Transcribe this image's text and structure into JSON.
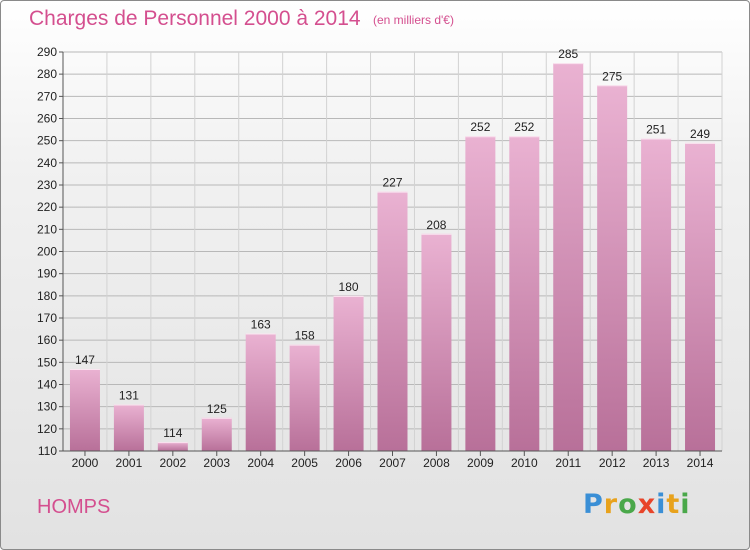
{
  "header": {
    "title": "Charges de Personnel 2000 à 2014",
    "subtitle": "(en milliers d'€)"
  },
  "footer": {
    "commune": "HOMPS",
    "logo_text": "Proxiti",
    "logo_colors": [
      "#3a8fd6",
      "#e8a21c",
      "#4aa84a",
      "#e8452a",
      "#3a8fd6",
      "#e8a21c",
      "#4aa84a"
    ]
  },
  "colors": {
    "title": "#d44f8f",
    "bar_light": "#eab2d2",
    "bar_dark": "#b87099"
  },
  "chart_data": {
    "type": "bar",
    "categories": [
      "2000",
      "2001",
      "2002",
      "2003",
      "2004",
      "2005",
      "2006",
      "2007",
      "2008",
      "2009",
      "2010",
      "2011",
      "2012",
      "2013",
      "2014"
    ],
    "values": [
      147,
      131,
      114,
      125,
      163,
      158,
      180,
      227,
      208,
      252,
      252,
      285,
      275,
      251,
      249
    ],
    "value_labels": [
      "147",
      "131",
      "114",
      "125",
      "163",
      "158",
      "180",
      "227",
      "208",
      "252",
      "252",
      "285",
      "275",
      "251",
      "249"
    ],
    "ylim": [
      110,
      290
    ],
    "yticks": [
      110,
      120,
      130,
      140,
      150,
      160,
      170,
      180,
      190,
      200,
      210,
      220,
      230,
      240,
      250,
      260,
      270,
      280,
      290
    ],
    "ytick_labels": [
      "110",
      "120",
      "130",
      "140",
      "150",
      "160",
      "170",
      "180",
      "190",
      "200",
      "210",
      "220",
      "230",
      "240",
      "250",
      "260",
      "270",
      "280",
      "290"
    ],
    "grid": true
  }
}
